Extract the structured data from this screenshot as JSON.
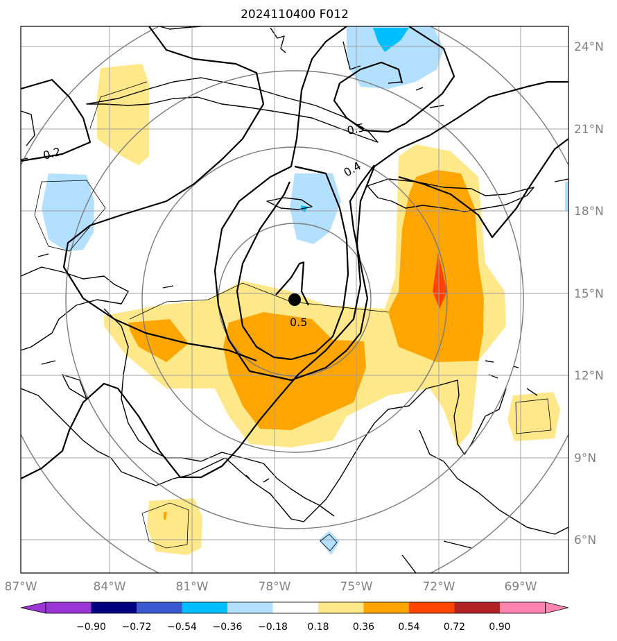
{
  "title": "2024110400 F012",
  "map": {
    "lon_ticks": [
      "87°W",
      "84°W",
      "81°W",
      "78°W",
      "75°W",
      "72°W",
      "69°W"
    ],
    "lat_ticks": [
      "24°N",
      "21°N",
      "18°N",
      "15°N",
      "12°N",
      "9°N",
      "6°N"
    ],
    "contour_labels": [
      "0.2",
      "0.5",
      "0.4",
      "0.5"
    ],
    "center_marker": "storm-center"
  },
  "colorbar": {
    "labels": [
      "−0.90",
      "−0.72",
      "−0.54",
      "−0.36",
      "−0.18",
      "0.18",
      "0.36",
      "0.54",
      "0.72",
      "0.90"
    ],
    "colors": [
      "#9a35d6",
      "#00007f",
      "#3a58d0",
      "#00bfff",
      "#b3e0ff",
      "#ffffff",
      "#ffe88a",
      "#ffa500",
      "#ff4500",
      "#b22222",
      "#ff85b0"
    ],
    "extend": "both"
  },
  "shading_colors": {
    "light_blue": "#b3e0ff",
    "blue": "#00bfff",
    "light_yellow": "#ffe88a",
    "orange": "#ffa500",
    "red_orange": "#ff4500"
  }
}
